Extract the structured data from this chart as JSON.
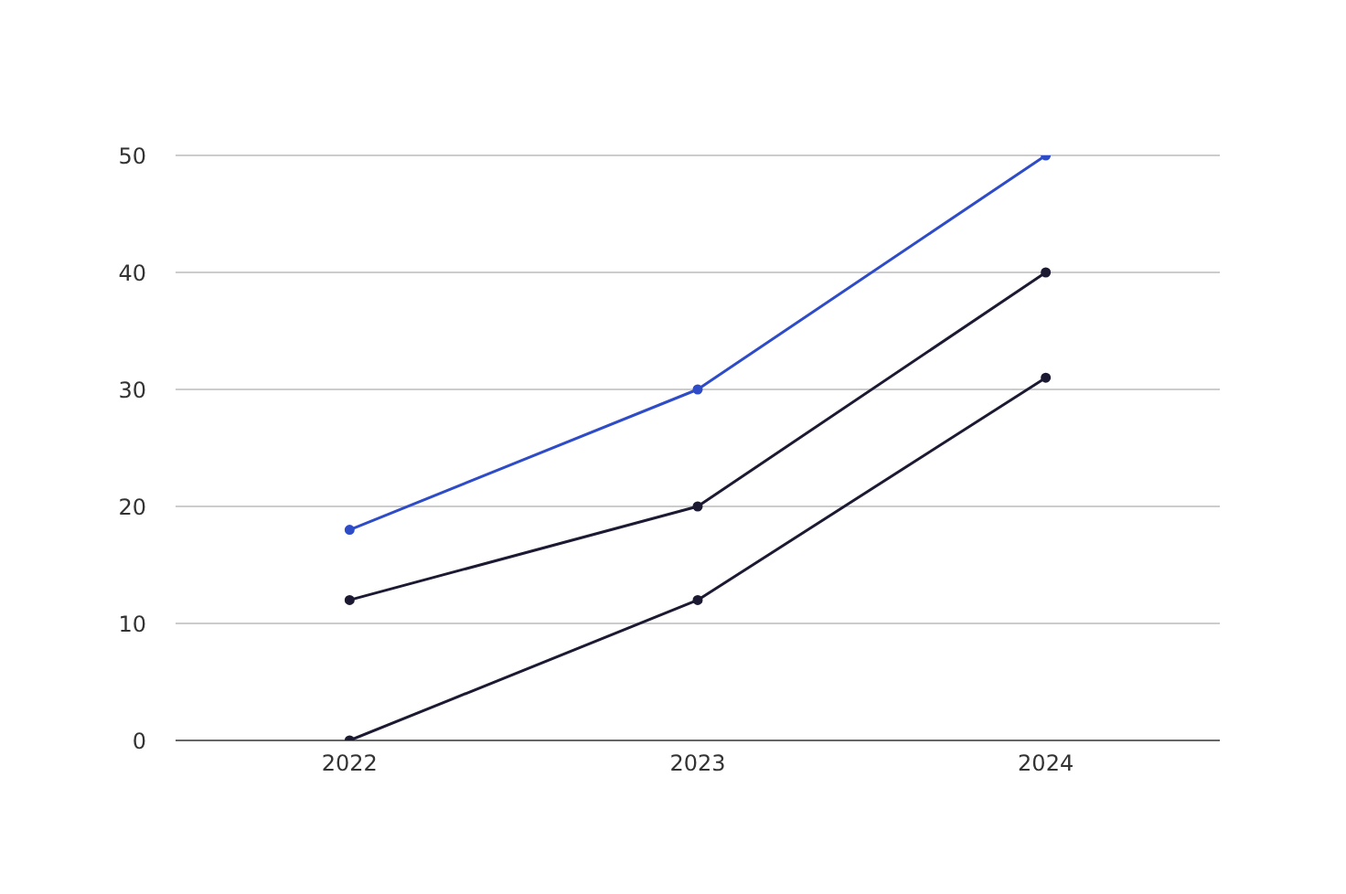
{
  "chart_data": {
    "type": "line",
    "categories": [
      "2022",
      "2023",
      "2024"
    ],
    "series": [
      {
        "color": "#2f4cc8",
        "values": [
          18,
          30,
          50
        ]
      },
      {
        "color": "#1c1a33",
        "values": [
          12,
          20,
          40
        ]
      },
      {
        "color": "#1c1a33",
        "values": [
          0,
          12,
          31
        ]
      }
    ],
    "ylim": [
      0,
      50
    ],
    "yticks": [
      0,
      10,
      20,
      30,
      40,
      50
    ],
    "grid": "y",
    "marker": "circle",
    "line_style": "solid"
  }
}
